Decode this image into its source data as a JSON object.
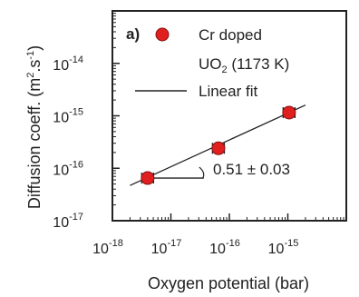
{
  "chart_data": {
    "type": "scatter",
    "panel_label": "a)",
    "xlabel": "Oxygen potential (bar)",
    "ylabel": "Diffusion coeff. (m",
    "ylabel_units": "2",
    "ylabel_sep": ".s",
    "ylabel_exp": "-1",
    "ylabel_close": ")",
    "xscale": "log",
    "yscale": "log",
    "xlim": [
      1e-18,
      1e-14
    ],
    "ylim": [
      1e-17,
      1e-13
    ],
    "grid": false,
    "legend_placement": "top-right",
    "x_ticks": [
      {
        "base": "10",
        "exp": "-18",
        "value": 1e-18
      },
      {
        "base": "10",
        "exp": "-17",
        "value": 1e-17
      },
      {
        "base": "10",
        "exp": "-16",
        "value": 1e-16
      },
      {
        "base": "10",
        "exp": "-15",
        "value": 1e-15
      }
    ],
    "y_ticks": [
      {
        "base": "10",
        "exp": "-17",
        "value": 1e-17
      },
      {
        "base": "10",
        "exp": "-16",
        "value": 1e-16
      },
      {
        "base": "10",
        "exp": "-15",
        "value": 1e-15
      },
      {
        "base": "10",
        "exp": "-14",
        "value": 1e-14
      }
    ],
    "series": [
      {
        "name_line1": "Cr doped",
        "name_line2_base": "UO",
        "name_line2_sub": "2",
        "name_line2_rest": " (1173 K)",
        "marker": "circle",
        "color": "#e0201f",
        "points": [
          {
            "x": 4e-18,
            "y": 6.5e-17,
            "xerr_log": 0.1
          },
          {
            "x": 6.5e-17,
            "y": 2.4e-16,
            "xerr_log": 0.1
          },
          {
            "x": 1.05e-15,
            "y": 1.15e-15,
            "xerr_log": 0.1
          }
        ]
      },
      {
        "name": "Linear fit",
        "type": "line",
        "color": "#222222",
        "x": [
          2e-18,
          2e-15
        ],
        "y": [
          4.7e-17,
          1.6e-15
        ]
      }
    ],
    "annotation": "0.51  ± 0.03"
  }
}
